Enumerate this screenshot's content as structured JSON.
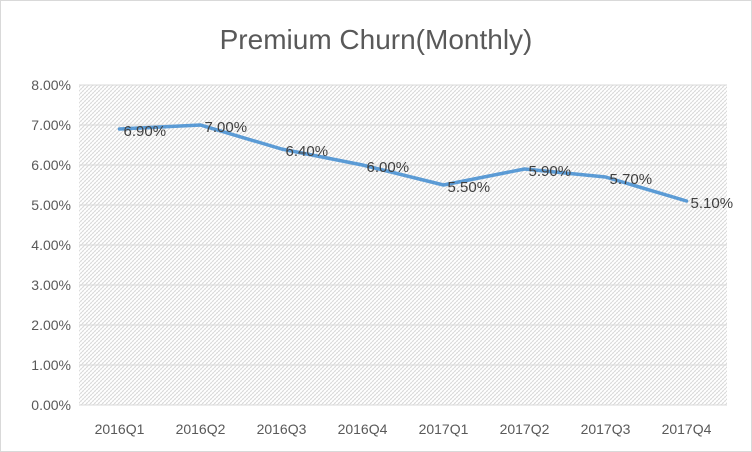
{
  "chart_data": {
    "type": "line",
    "title": "Premium Churn(Monthly)",
    "xlabel": "",
    "ylabel": "",
    "categories": [
      "2016Q1",
      "2016Q2",
      "2016Q3",
      "2016Q4",
      "2017Q1",
      "2017Q2",
      "2017Q3",
      "2017Q4"
    ],
    "series": [
      {
        "values": [
          0.069,
          0.07,
          0.064,
          0.06,
          0.055,
          0.059,
          0.057,
          0.051
        ],
        "data_labels": [
          "6.90%",
          "7.00%",
          "6.40%",
          "6.00%",
          "5.50%",
          "5.90%",
          "5.70%",
          "5.10%"
        ],
        "color": "#5b9bd5"
      }
    ],
    "ylim": [
      0,
      0.08
    ],
    "y_ticks": [
      0,
      0.01,
      0.02,
      0.03,
      0.04,
      0.05,
      0.06,
      0.07,
      0.08
    ],
    "y_tick_labels": [
      "0.00%",
      "1.00%",
      "2.00%",
      "3.00%",
      "4.00%",
      "5.00%",
      "6.00%",
      "7.00%",
      "8.00%"
    ],
    "grid": true,
    "plot_background": "hatched",
    "colors": {
      "line": "#5b9bd5",
      "text": "#595959",
      "grid": "#d9d9d9",
      "hatch": "#c8c8c8"
    }
  }
}
